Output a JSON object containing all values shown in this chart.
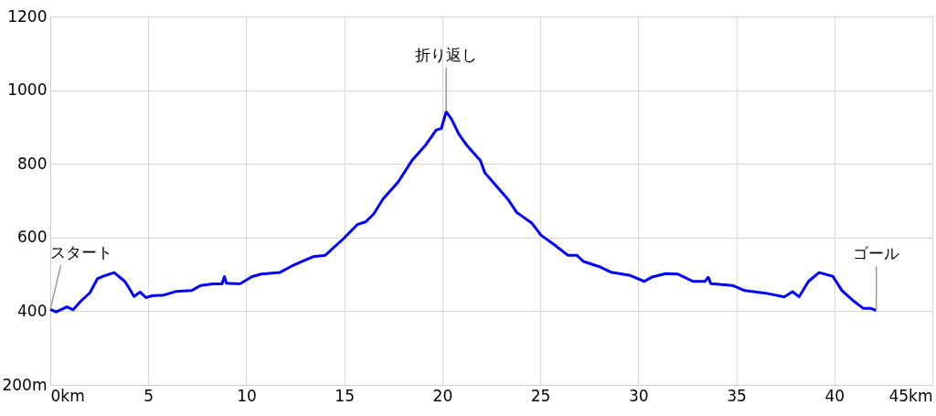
{
  "chart_data": {
    "type": "line",
    "x": [
      0,
      0.3,
      0.85,
      1.17,
      1.55,
      2.02,
      2.4,
      2.7,
      3.26,
      3.8,
      4.03,
      4.27,
      4.58,
      4.88,
      5.19,
      5.81,
      6.43,
      7.2,
      7.67,
      8.3,
      8.76,
      8.88,
      8.99,
      9.67,
      10.3,
      10.77,
      11.7,
      12.3,
      12.8,
      13.4,
      14.03,
      14.96,
      15.66,
      16.1,
      16.5,
      16.98,
      17.75,
      18.45,
      19.15,
      19.69,
      19.95,
      20.2,
      20.47,
      20.85,
      21.24,
      21.94,
      22.17,
      22.71,
      23.33,
      23.8,
      24.57,
      25.04,
      25.8,
      26.4,
      26.86,
      27.2,
      28.06,
      28.6,
      29.53,
      30.31,
      30.7,
      31.4,
      32.0,
      32.79,
      33.4,
      33.57,
      33.7,
      34.8,
      35.43,
      36.5,
      37.44,
      37.87,
      38.2,
      38.68,
      39.22,
      39.92,
      40.39,
      41.0,
      41.47,
      41.85,
      42.14
    ],
    "series": [
      {
        "color": "#0000ff",
        "values": [
          405,
          398,
          412,
          404,
          427,
          450,
          488,
          495,
          505,
          481,
          462,
          440,
          452,
          437,
          442,
          444,
          454,
          456,
          470,
          474,
          474,
          494,
          476,
          474,
          494,
          501,
          505,
          522,
          534,
          548,
          552,
          597,
          635,
          643,
          664,
          705,
          751,
          809,
          851,
          892,
          896,
          942,
          921,
          880,
          851,
          809,
          776,
          743,
          705,
          668,
          639,
          606,
          577,
          552,
          552,
          535,
          520,
          506,
          498,
          481,
          493,
          502,
          501,
          481,
          481,
          492,
          475,
          470,
          456,
          449,
          439,
          453,
          439,
          481,
          505,
          495,
          456,
          427,
          408,
          408,
          402
        ]
      }
    ],
    "xlim": [
      0,
      45
    ],
    "ylim": [
      200,
      1200
    ],
    "xticks": [
      {
        "value": 0,
        "label": "0km"
      },
      5,
      10,
      15,
      20,
      25,
      30,
      35,
      40,
      {
        "value": 45,
        "label": "45km"
      }
    ],
    "yticks": [
      {
        "value": 200,
        "label": "200m"
      },
      400,
      600,
      800,
      1000,
      1200
    ],
    "grid": true,
    "marker": "none",
    "line_style": "solid",
    "annotations": [
      {
        "text": "スタート",
        "x": 0,
        "y": 405
      },
      {
        "text": "折り返し",
        "x": 20.2,
        "y": 942
      },
      {
        "text": "ゴール",
        "x": 42.14,
        "y": 402
      }
    ]
  }
}
